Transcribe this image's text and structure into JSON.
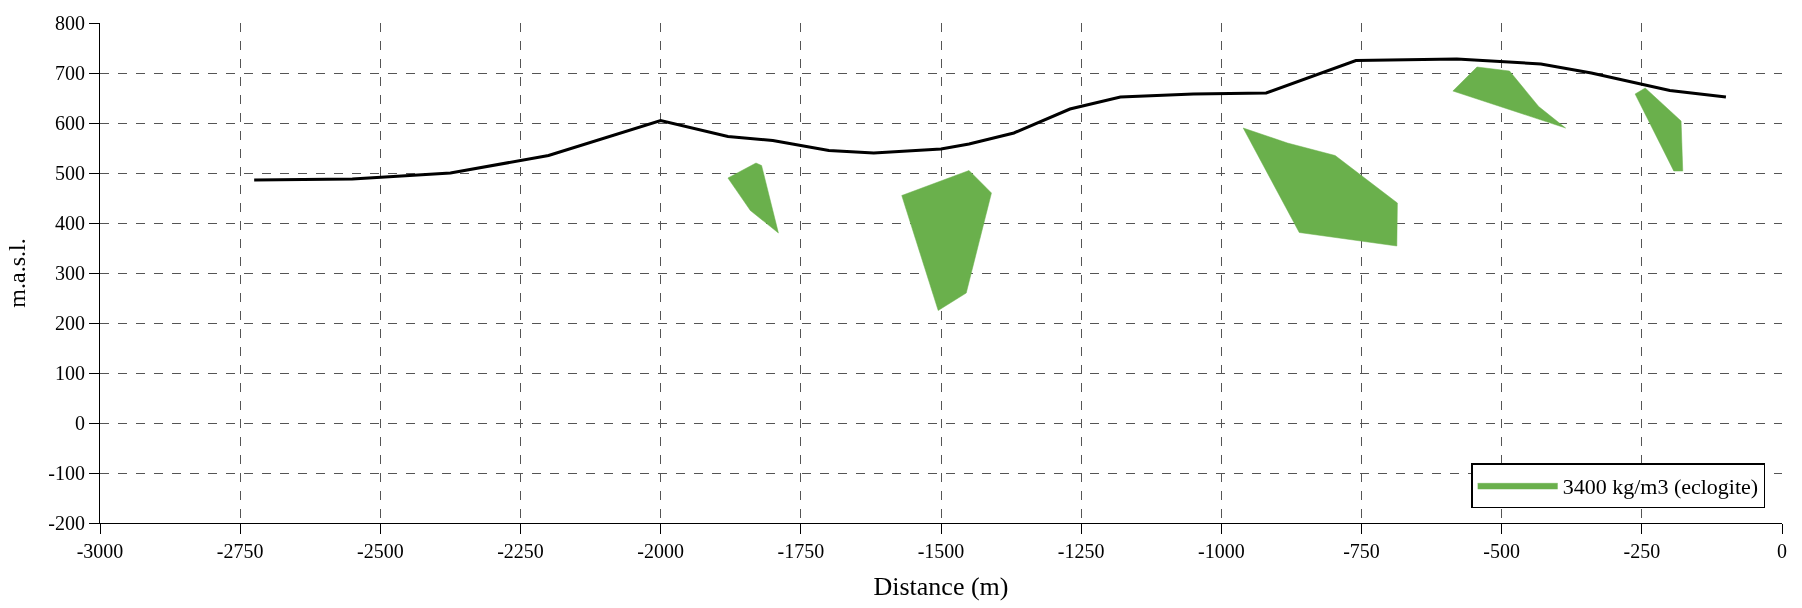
{
  "chart_data": {
    "type": "line",
    "xlabel": "Distance (m)",
    "ylabel": "m.a.s.l.",
    "xlim": [
      -3000,
      0
    ],
    "xticks": [
      -3000,
      -2750,
      -2500,
      -2250,
      -2000,
      -1750,
      -1500,
      -1250,
      -1000,
      -750,
      -500,
      -250,
      0
    ],
    "ylim": [
      -200,
      800
    ],
    "yticks": [
      -200,
      -100,
      0,
      100,
      200,
      300,
      400,
      500,
      600,
      700,
      800
    ],
    "grid": true,
    "legend": "bottom right",
    "line_style": "solid",
    "marker": "none",
    "series": [
      {
        "color": "#000000",
        "x": [
          -2725,
          -2550,
          -2375,
          -2200,
          -2000,
          -1880,
          -1800,
          -1700,
          -1620,
          -1500,
          -1450,
          -1370,
          -1270,
          -1180,
          -1050,
          -920,
          -760,
          -580,
          -430,
          -340,
          -200,
          -100
        ],
        "values": [
          486,
          488,
          500,
          535,
          605,
          573,
          565,
          545,
          540,
          548,
          558,
          580,
          628,
          652,
          658,
          660,
          725,
          728,
          718,
          700,
          665,
          652
        ]
      },
      {
        "type": "area",
        "name": "3400 kg/m3 (eclogite)",
        "color": "#6ab04c",
        "x": [
          -1880,
          -1830,
          -1820,
          -1790,
          -1840,
          -1880
        ],
        "values": [
          490,
          520,
          515,
          380,
          425,
          490
        ]
      },
      {
        "type": "area",
        "color": "#6ab04c",
        "x": [
          -1570,
          -1450,
          -1410,
          -1455,
          -1505,
          -1570
        ],
        "values": [
          455,
          505,
          460,
          260,
          225,
          455
        ]
      },
      {
        "type": "area",
        "color": "#6ab04c",
        "x": [
          -961,
          -882,
          -797,
          -686,
          -687,
          -861,
          -961
        ],
        "values": [
          590,
          560,
          535,
          440,
          354,
          381,
          590
        ]
      },
      {
        "type": "area",
        "color": "#6ab04c",
        "x": [
          -587,
          -544,
          -486,
          -434,
          -386,
          -587
        ],
        "values": [
          664,
          712,
          704,
          633,
          590,
          664
        ]
      },
      {
        "type": "area",
        "color": "#6ab04c",
        "x": [
          -262,
          -244,
          -180,
          -177,
          -193,
          -262
        ],
        "values": [
          658,
          670,
          604,
          504,
          504,
          658
        ]
      }
    ]
  }
}
